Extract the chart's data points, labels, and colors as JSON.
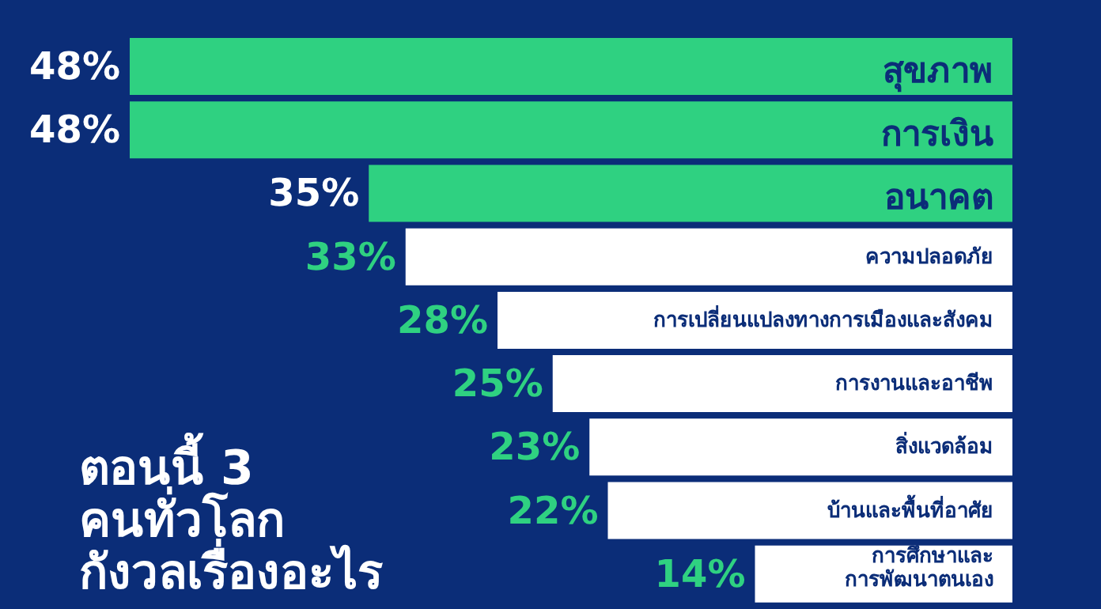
{
  "chart_data": {
    "type": "bar",
    "orientation": "horizontal",
    "title": "ตอนนี้ 3\nคนทั่วโลก\nกังวลเรื่องอะไร",
    "categories": [
      "สุขภาพ",
      "การเงิน",
      "อนาคต",
      "ความปลอดภัย",
      "การเปลี่ยนแปลงทางการเมืองและสังคม",
      "การงานและอาชีพ",
      "สิ่งแวดล้อม",
      "บ้านและพื้นที่อาศัย",
      "การศึกษาและ\nการพัฒนาตนเอง"
    ],
    "values": [
      48,
      48,
      35,
      33,
      28,
      25,
      23,
      22,
      14
    ],
    "value_labels": [
      "48%",
      "48%",
      "35%",
      "33%",
      "28%",
      "25%",
      "23%",
      "22%",
      "14%"
    ],
    "colors": [
      "#2fd181",
      "#2fd181",
      "#2fd181",
      "#ffffff",
      "#ffffff",
      "#ffffff",
      "#ffffff",
      "#ffffff",
      "#ffffff"
    ]
  }
}
